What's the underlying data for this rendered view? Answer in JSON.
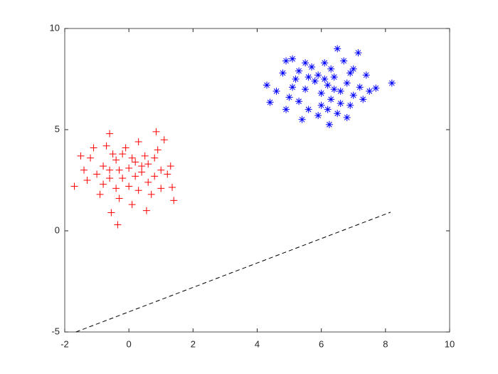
{
  "chart_data": {
    "type": "scatter",
    "xlim": [
      -2,
      10
    ],
    "ylim": [
      -5,
      10
    ],
    "xticks": [
      -2,
      0,
      2,
      4,
      6,
      8,
      10
    ],
    "yticks": [
      -5,
      0,
      5,
      10
    ],
    "box": true,
    "grid": false,
    "series": [
      {
        "color": "#ff0000",
        "marker": "+",
        "x": [
          -0.35,
          -0.55,
          0.55,
          -1.7,
          1.4,
          1.35,
          0.85,
          -0.6,
          -1.2,
          -1.5,
          -1.0,
          -0.8,
          -0.6,
          -0.4,
          -0.2,
          0.0,
          0.2,
          0.4,
          0.6,
          0.8,
          1.0,
          1.2,
          -0.9,
          -0.3,
          0.1,
          0.3,
          0.7,
          -1.3,
          -0.7,
          0.3,
          0.9,
          1.1,
          -0.1,
          -0.5,
          0.5,
          -1.1,
          1.3,
          -0.8,
          0.0,
          0.6,
          -0.2,
          0.2,
          -0.4,
          1.0,
          -1.4,
          -0.6,
          0.4,
          0.8,
          -0.3,
          0.1
        ],
        "y": [
          0.3,
          0.9,
          1.0,
          2.2,
          1.5,
          2.15,
          4.9,
          4.8,
          3.6,
          3.7,
          2.8,
          3.2,
          3.0,
          3.5,
          2.6,
          3.1,
          3.4,
          2.9,
          3.3,
          2.7,
          3.0,
          2.8,
          1.8,
          1.6,
          1.3,
          2.0,
          1.8,
          2.5,
          4.2,
          4.4,
          4.0,
          4.5,
          4.1,
          3.8,
          3.7,
          4.1,
          3.2,
          2.3,
          2.2,
          2.4,
          3.8,
          2.7,
          2.1,
          2.1,
          3.0,
          2.6,
          3.2,
          3.6,
          3.0,
          3.6
        ]
      },
      {
        "color": "#0000ff",
        "marker": "*",
        "x": [
          8.2,
          7.7,
          7.15,
          6.5,
          4.3,
          4.4,
          6.25,
          5.1,
          4.9,
          5.5,
          5.8,
          6.0,
          6.2,
          6.4,
          6.6,
          6.8,
          7.0,
          7.2,
          5.3,
          5.6,
          5.9,
          6.5,
          6.9,
          7.3,
          4.8,
          5.2,
          5.7,
          6.1,
          6.3,
          6.7,
          7.0,
          7.4,
          4.6,
          5.0,
          5.4,
          6.0,
          6.3,
          6.6,
          5.9,
          6.4,
          5.1,
          7.5,
          5.6,
          6.2,
          6.8,
          4.9,
          5.5,
          6.9,
          5.3,
          6.1
        ],
        "y": [
          7.3,
          7.05,
          8.8,
          9.0,
          7.2,
          6.35,
          5.25,
          8.5,
          8.4,
          7.0,
          7.4,
          6.8,
          7.2,
          7.6,
          6.9,
          7.3,
          6.7,
          7.1,
          6.4,
          6.0,
          5.7,
          5.8,
          6.2,
          6.5,
          7.8,
          7.5,
          8.1,
          8.3,
          8.0,
          8.4,
          8.0,
          7.7,
          6.9,
          6.6,
          5.5,
          6.2,
          6.5,
          6.3,
          7.7,
          7.0,
          7.1,
          6.9,
          7.6,
          6.0,
          5.6,
          6.0,
          8.3,
          7.8,
          7.9,
          7.5
        ]
      },
      {
        "color": "#000000",
        "marker": "none",
        "line": "dashed",
        "x": [
          -1.65,
          8.16
        ],
        "y": [
          -5,
          0.92
        ]
      }
    ]
  }
}
